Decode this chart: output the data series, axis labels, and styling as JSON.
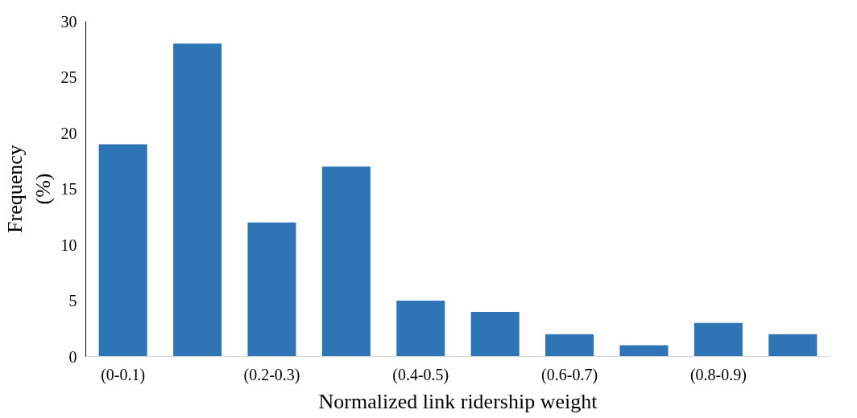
{
  "chart_data": {
    "type": "bar",
    "xlabel": "Normalized link ridership weight",
    "ylabel": "Frequency\n(%)",
    "categories": [
      "(0-0.1)",
      null,
      "(0.2-0.3)",
      null,
      "(0.4-0.5)",
      null,
      "(0.6-0.7)",
      null,
      "(0.8-0.9)",
      null
    ],
    "series": [
      {
        "color": "#2e75b6",
        "values": [
          19,
          28,
          12,
          17,
          5,
          4,
          2,
          1,
          3,
          2
        ]
      }
    ],
    "ylim": [
      0,
      30
    ],
    "yticks": [
      0,
      5,
      10,
      15,
      20,
      25,
      30
    ],
    "grid": false
  }
}
